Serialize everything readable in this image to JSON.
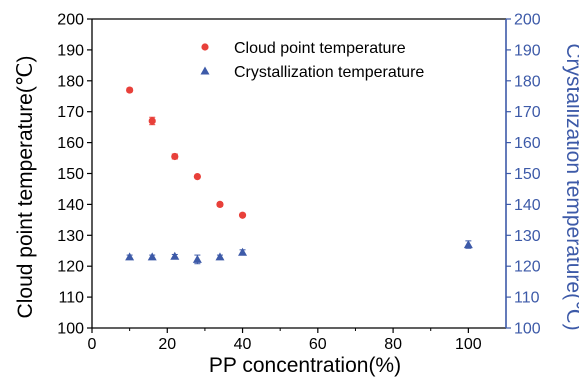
{
  "chart_data": {
    "type": "scatter",
    "title": "",
    "xlabel": "PP concentration(%)",
    "ylabel_left": "Cloud point temperature(℃)",
    "ylabel_right": "Crystallization temperature(℃)",
    "xlim": [
      0,
      110
    ],
    "ylim": [
      100,
      200
    ],
    "ylim_right": [
      100,
      200
    ],
    "x_ticks": [
      0,
      20,
      40,
      60,
      80,
      100
    ],
    "y_ticks": [
      100,
      110,
      120,
      130,
      140,
      150,
      160,
      170,
      180,
      190,
      200
    ],
    "grid": false,
    "legend_position": "top-center",
    "series": [
      {
        "name": "Cloud point temperature",
        "marker": "circle",
        "color": "#e8403a",
        "axis": "left",
        "x": [
          10,
          16,
          22,
          28,
          34,
          40
        ],
        "y": [
          177,
          167,
          155.5,
          149,
          140,
          136.5
        ],
        "err": [
          0.6,
          1.2,
          0.8,
          0.4,
          0.6,
          0.4
        ]
      },
      {
        "name": "Crystallization temperature",
        "marker": "triangle",
        "color": "#3d5aa8",
        "axis": "right",
        "x": [
          10,
          16,
          22,
          28,
          34,
          40,
          100
        ],
        "y": [
          123,
          123,
          123.2,
          122.2,
          123,
          124.5,
          127
        ],
        "err": [
          0.6,
          0.6,
          0.6,
          1.4,
          0.6,
          0.8,
          1.2
        ]
      }
    ],
    "colors": {
      "left_axis": "#000000",
      "right_axis": "#3d5aa8"
    }
  }
}
